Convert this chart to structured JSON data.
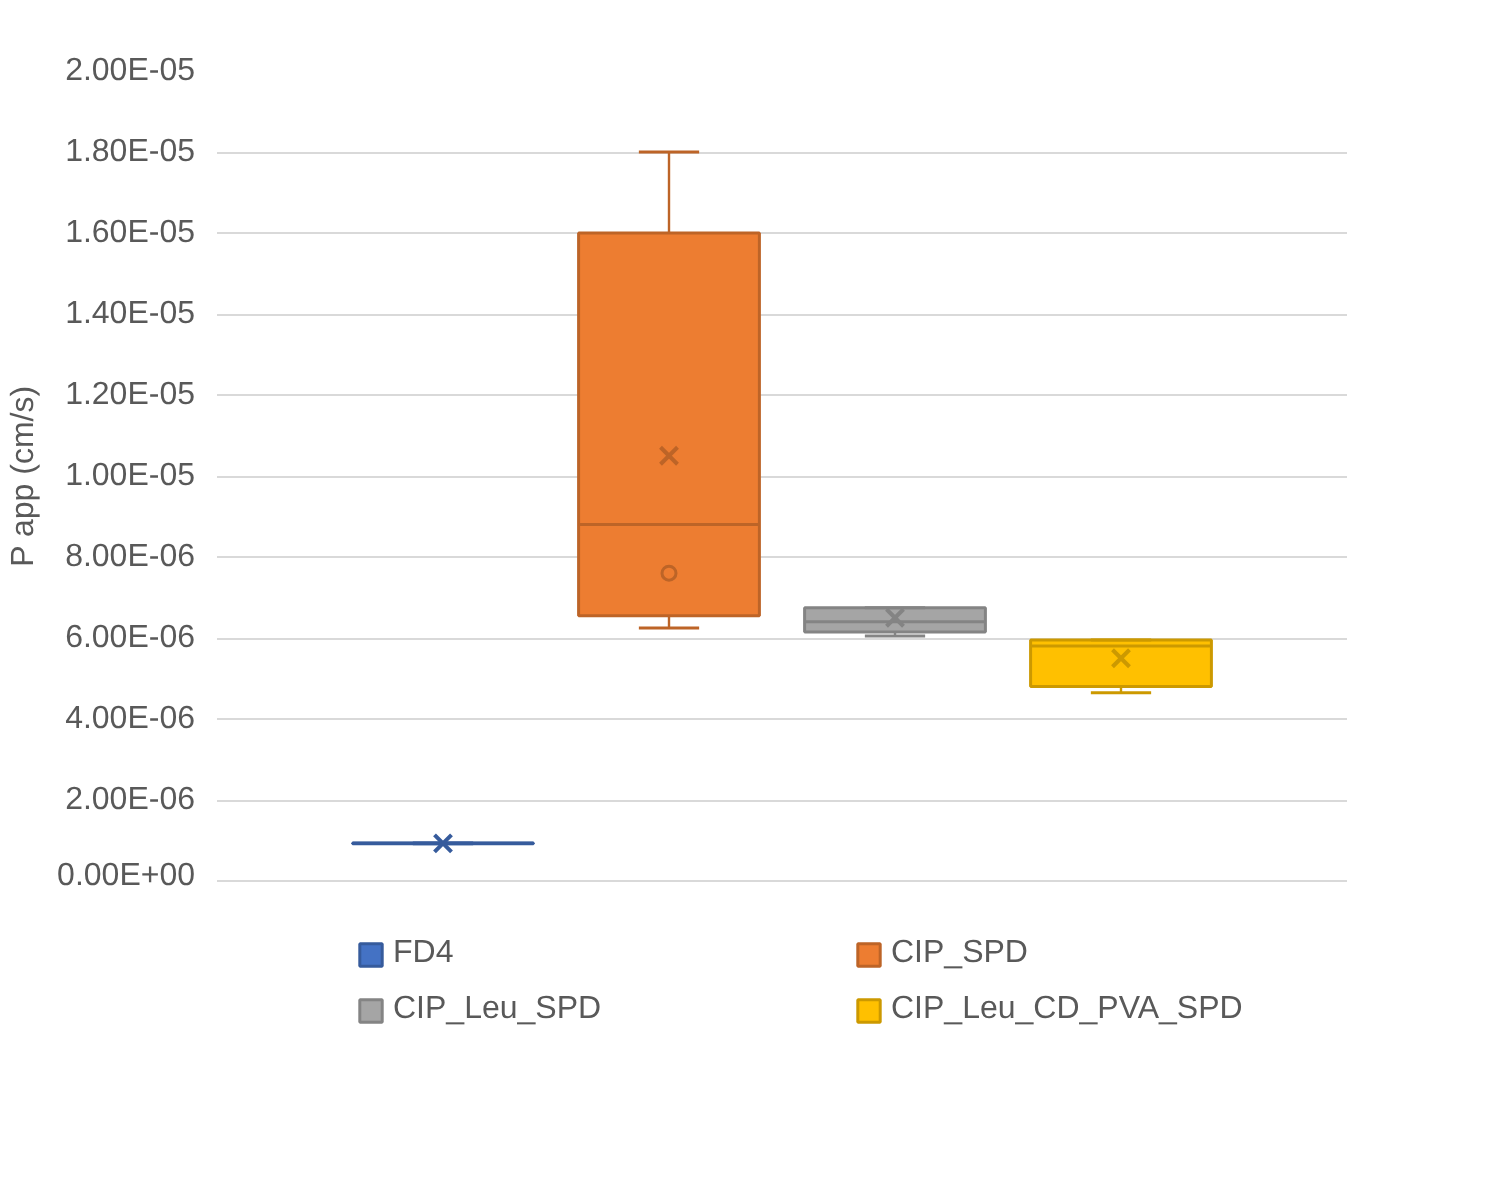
{
  "chart_data": {
    "type": "box",
    "categories": [
      null
    ],
    "ylabel": "P app (cm/s)",
    "ylim": [
      0,
      2e-05
    ],
    "yticks": [
      {
        "value": 0,
        "label": "0.00E+00"
      },
      {
        "value": 2e-06,
        "label": "2.00E-06"
      },
      {
        "value": 4e-06,
        "label": "4.00E-06"
      },
      {
        "value": 6e-06,
        "label": "6.00E-06"
      },
      {
        "value": 8e-06,
        "label": "8.00E-06"
      },
      {
        "value": 1e-05,
        "label": "1.00E-05"
      },
      {
        "value": 1.2e-05,
        "label": "1.20E-05"
      },
      {
        "value": 1.4e-05,
        "label": "1.40E-05"
      },
      {
        "value": 1.6e-05,
        "label": "1.60E-05"
      },
      {
        "value": 1.8e-05,
        "label": "1.80E-05"
      },
      {
        "value": 2e-05,
        "label": "2.00E-05"
      }
    ],
    "grid": "y",
    "legend": "bottom",
    "marker": "cross",
    "series": [
      {
        "name": "FD4",
        "color": "#4472c4",
        "boxes": [
          {
            "low": 9.2e-07,
            "q1": 9.2e-07,
            "median": 9.3e-07,
            "q3": 9.4e-07,
            "high": 9.4e-07,
            "mean": 9.3e-07
          }
        ]
      },
      {
        "name": "CIP_SPD",
        "color": "#ed7d31",
        "boxes": [
          {
            "low": 6.25e-06,
            "q1": 6.55e-06,
            "median": 8.8e-06,
            "q3": 1.6e-05,
            "high": 1.8e-05,
            "mean": 1.05e-05,
            "outliers": [
              7.6e-06
            ]
          }
        ]
      },
      {
        "name": "CIP_Leu_SPD",
        "color": "#a5a5a5",
        "boxes": [
          {
            "low": 6.05e-06,
            "q1": 6.15e-06,
            "median": 6.4e-06,
            "q3": 6.75e-06,
            "high": 6.75e-06,
            "mean": 6.5e-06
          }
        ]
      },
      {
        "name": "CIP_Leu_CD_PVA_SPD",
        "color": "#ffc000",
        "boxes": [
          {
            "low": 4.65e-06,
            "q1": 4.8e-06,
            "median": 5.8e-06,
            "q3": 5.95e-06,
            "high": 5.95e-06,
            "mean": 5.5e-06
          }
        ]
      }
    ]
  }
}
